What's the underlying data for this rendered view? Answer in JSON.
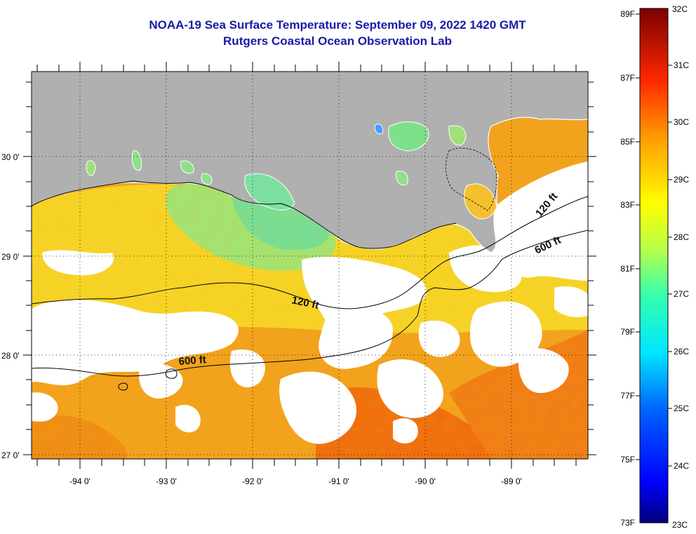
{
  "title": "NOAA-19 Sea Surface Temperature:  September 09, 2022 1420 GMT",
  "subtitle": "Rutgers Coastal Ocean Observation Lab",
  "map": {
    "lon_ticks": [
      "-94 0'",
      "-93 0'",
      "-92 0'",
      "-91 0'",
      "-90 0'",
      "-89 0'"
    ],
    "lat_ticks": [
      "30 0'",
      "29 0'",
      "28 0'",
      "27 0'"
    ],
    "contours": [
      {
        "label": "120 ft"
      },
      {
        "label": "600 ft"
      },
      {
        "label": "120 ft"
      },
      {
        "label": "600 ft"
      }
    ]
  },
  "colorbar": {
    "fahrenheit": [
      "89F",
      "87F",
      "85F",
      "83F",
      "81F",
      "79F",
      "77F",
      "75F",
      "73F"
    ],
    "celsius": [
      "32C",
      "31C",
      "30C",
      "29C",
      "28C",
      "27C",
      "26C",
      "25C",
      "24C",
      "23C"
    ]
  },
  "colors": {
    "title": "#1a1aa6",
    "land": "#b0b0b0",
    "cloud": "#ffffff",
    "frame": "#000000"
  }
}
